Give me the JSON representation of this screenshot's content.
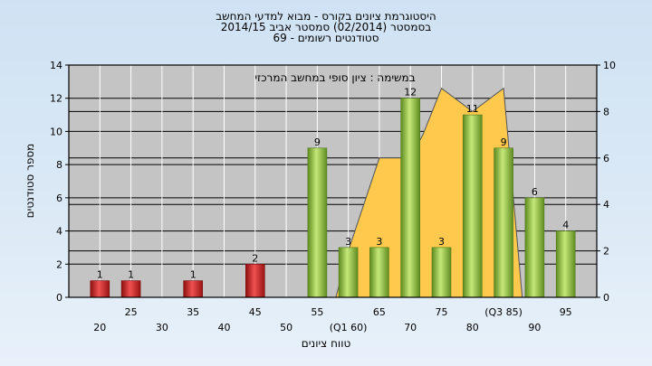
{
  "chart_data": {
    "type": "bar",
    "title_lines": [
      "היסטוגרמת ציונים בקורס - מבוא למדעי המחשב",
      "בסמסטר  (02/2014)  סמסטר אביב 2014/15",
      "69 - סטודנטים רשומים"
    ],
    "subtitle": "במשימה : ציון סופי במחשב המרכזי",
    "xlabel": "טווח ציונים",
    "ylabel": "מספר סטודנטים",
    "ylim": [
      0,
      14
    ],
    "y_ticks": [
      0,
      2,
      4,
      6,
      8,
      10,
      12,
      14
    ],
    "y2lim": [
      0,
      10
    ],
    "y2_ticks": [
      0,
      2,
      4,
      6,
      8,
      10
    ],
    "grid": true,
    "x_tick_labels": [
      {
        "value": 20,
        "label": "20",
        "row": 2
      },
      {
        "value": 25,
        "label": "25",
        "row": 1
      },
      {
        "value": 30,
        "label": "30",
        "row": 2
      },
      {
        "value": 35,
        "label": "35",
        "row": 1
      },
      {
        "value": 40,
        "label": "40",
        "row": 2
      },
      {
        "value": 45,
        "label": "45",
        "row": 1
      },
      {
        "value": 50,
        "label": "50",
        "row": 2
      },
      {
        "value": 55,
        "label": "55",
        "row": 1
      },
      {
        "value": 60,
        "label": "(Q1 60)",
        "row": 2
      },
      {
        "value": 65,
        "label": "65",
        "row": 1
      },
      {
        "value": 70,
        "label": "70",
        "row": 2
      },
      {
        "value": 75,
        "label": "75",
        "row": 1
      },
      {
        "value": 80,
        "label": "80",
        "row": 2
      },
      {
        "value": 85,
        "label": "(Q3 85)",
        "row": 1
      },
      {
        "value": 90,
        "label": "90",
        "row": 2
      },
      {
        "value": 95,
        "label": "95",
        "row": 1
      }
    ],
    "bars": [
      {
        "x": 20,
        "value": 1,
        "color": "red"
      },
      {
        "x": 25,
        "value": 1,
        "color": "red"
      },
      {
        "x": 35,
        "value": 1,
        "color": "red"
      },
      {
        "x": 45,
        "value": 2,
        "color": "red"
      },
      {
        "x": 55,
        "value": 9,
        "color": "green"
      },
      {
        "x": 60,
        "value": 3,
        "color": "green"
      },
      {
        "x": 65,
        "value": 3,
        "color": "green"
      },
      {
        "x": 70,
        "value": 12,
        "color": "green"
      },
      {
        "x": 75,
        "value": 3,
        "color": "green"
      },
      {
        "x": 80,
        "value": 11,
        "color": "green"
      },
      {
        "x": 85,
        "value": 9,
        "color": "green"
      },
      {
        "x": 90,
        "value": 6,
        "color": "green"
      },
      {
        "x": 95,
        "value": 4,
        "color": "green"
      }
    ],
    "area_series": {
      "axis": "secondary",
      "points": [
        [
          58,
          0
        ],
        [
          60,
          2
        ],
        [
          65,
          6
        ],
        [
          70,
          6
        ],
        [
          72,
          7
        ],
        [
          75,
          9
        ],
        [
          80,
          8
        ],
        [
          85,
          9
        ],
        [
          88,
          0
        ]
      ]
    },
    "colors": {
      "plot_bg": "#c4c4c4",
      "grid": "#000000",
      "area": "#ffc94d",
      "red_bar": "#d42a2a",
      "green_bar": "#93c23f"
    }
  }
}
